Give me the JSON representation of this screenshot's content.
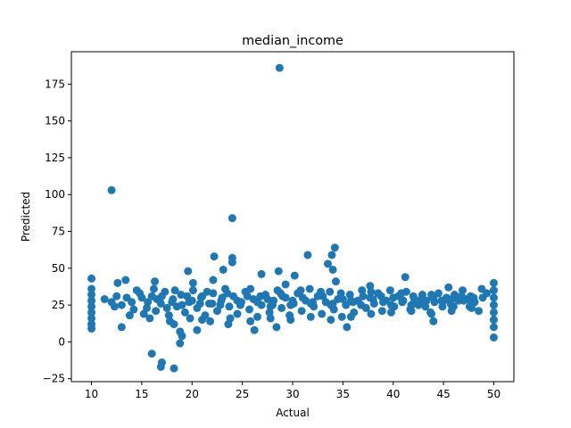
{
  "chart_data": {
    "type": "scatter",
    "title": "median_income",
    "xlabel": "Actual",
    "ylabel": "Predicted",
    "xlim": [
      8.0,
      52.0
    ],
    "ylim": [
      -27.0,
      197.0
    ],
    "xticks": [
      10,
      15,
      20,
      25,
      30,
      35,
      40,
      45,
      50
    ],
    "yticks": [
      -25,
      0,
      25,
      50,
      75,
      100,
      125,
      150,
      175
    ],
    "grid": false,
    "marker_color": "#1f77b4",
    "series": [
      {
        "points": [
          [
            28.7,
            186
          ],
          [
            12.0,
            103
          ],
          [
            24.0,
            84
          ],
          [
            34.2,
            64
          ],
          [
            22.2,
            58
          ],
          [
            24.0,
            57
          ],
          [
            31.5,
            59
          ],
          [
            33.9,
            59
          ],
          [
            24.0,
            54
          ],
          [
            33.5,
            53
          ],
          [
            34.0,
            49
          ],
          [
            23.1,
            49
          ],
          [
            19.6,
            48
          ],
          [
            28.6,
            48
          ],
          [
            26.9,
            46
          ],
          [
            30.2,
            45
          ],
          [
            41.2,
            44
          ],
          [
            10.0,
            43
          ],
          [
            13.4,
            42
          ],
          [
            22.1,
            42
          ],
          [
            16.3,
            41
          ],
          [
            34.3,
            41
          ],
          [
            50.0,
            40
          ],
          [
            12.6,
            40
          ],
          [
            20.1,
            40
          ],
          [
            37.7,
            38
          ],
          [
            29.3,
            39
          ],
          [
            45.5,
            37
          ],
          [
            16.0,
            -8
          ],
          [
            17.0,
            -14
          ],
          [
            16.9,
            -17
          ],
          [
            18.2,
            -18
          ],
          [
            18.8,
            7
          ],
          [
            19.0,
            4
          ],
          [
            18.8,
            -1
          ],
          [
            20.5,
            8
          ],
          [
            26.2,
            8
          ],
          [
            28.4,
            10
          ],
          [
            35.4,
            10
          ],
          [
            13.0,
            10
          ],
          [
            10.0,
            9
          ],
          [
            50.0,
            3
          ],
          [
            44.0,
            14
          ],
          [
            23.6,
            12
          ],
          [
            18.2,
            12
          ],
          [
            21.0,
            15
          ],
          [
            48.5,
            21
          ],
          [
            47.6,
            24
          ],
          [
            46.0,
            24
          ],
          [
            43.2,
            24
          ],
          [
            49.3,
            33
          ],
          [
            48.8,
            36
          ],
          [
            10.0,
            12
          ],
          [
            10.0,
            16
          ],
          [
            10.0,
            20
          ],
          [
            10.0,
            24
          ],
          [
            10.0,
            28
          ],
          [
            10.0,
            32
          ],
          [
            10.0,
            36
          ],
          [
            50.0,
            10
          ],
          [
            50.0,
            15
          ],
          [
            50.0,
            20
          ],
          [
            50.0,
            25
          ],
          [
            50.0,
            30
          ],
          [
            50.0,
            35
          ],
          [
            11.3,
            29
          ],
          [
            12.0,
            27
          ],
          [
            12.3,
            24
          ],
          [
            13.5,
            30
          ],
          [
            14.2,
            22
          ],
          [
            14.8,
            33
          ],
          [
            15.2,
            19
          ],
          [
            15.6,
            27
          ],
          [
            16.0,
            31
          ],
          [
            16.4,
            21
          ],
          [
            16.9,
            26
          ],
          [
            17.3,
            34
          ],
          [
            17.7,
            18
          ],
          [
            18.1,
            29
          ],
          [
            18.5,
            24
          ],
          [
            18.9,
            32
          ],
          [
            19.3,
            20
          ],
          [
            19.7,
            27
          ],
          [
            20.1,
            35
          ],
          [
            20.5,
            23
          ],
          [
            20.9,
            30
          ],
          [
            21.3,
            18
          ],
          [
            21.7,
            26
          ],
          [
            22.1,
            33
          ],
          [
            22.5,
            21
          ],
          [
            22.9,
            28
          ],
          [
            23.3,
            36
          ],
          [
            23.7,
            24
          ],
          [
            24.1,
            31
          ],
          [
            24.5,
            19
          ],
          [
            24.9,
            27
          ],
          [
            25.3,
            34
          ],
          [
            25.7,
            22
          ],
          [
            26.1,
            29
          ],
          [
            26.5,
            17
          ],
          [
            26.9,
            25
          ],
          [
            27.3,
            32
          ],
          [
            27.7,
            20
          ],
          [
            28.1,
            28
          ],
          [
            28.5,
            35
          ],
          [
            28.9,
            23
          ],
          [
            29.3,
            30
          ],
          [
            29.7,
            18
          ],
          [
            30.1,
            26
          ],
          [
            30.5,
            33
          ],
          [
            30.9,
            21
          ],
          [
            31.3,
            28
          ],
          [
            31.7,
            36
          ],
          [
            32.1,
            24
          ],
          [
            32.5,
            31
          ],
          [
            32.9,
            19
          ],
          [
            33.3,
            27
          ],
          [
            33.7,
            34
          ],
          [
            34.1,
            22
          ],
          [
            34.5,
            29
          ],
          [
            34.9,
            17
          ],
          [
            35.3,
            25
          ],
          [
            35.7,
            32
          ],
          [
            36.1,
            20
          ],
          [
            36.5,
            28
          ],
          [
            36.9,
            35
          ],
          [
            37.3,
            23
          ],
          [
            37.7,
            30
          ],
          [
            38.1,
            26
          ],
          [
            38.5,
            33
          ],
          [
            38.9,
            21
          ],
          [
            39.3,
            28
          ],
          [
            39.7,
            35
          ],
          [
            40.1,
            24
          ],
          [
            40.5,
            31
          ],
          [
            40.9,
            27
          ],
          [
            41.3,
            34
          ],
          [
            41.7,
            22
          ],
          [
            42.1,
            29
          ],
          [
            42.5,
            25
          ],
          [
            42.9,
            32
          ],
          [
            43.3,
            28
          ],
          [
            43.7,
            20
          ],
          [
            44.1,
            27
          ],
          [
            44.5,
            33
          ],
          [
            44.9,
            24
          ],
          [
            45.3,
            30
          ],
          [
            45.7,
            26
          ],
          [
            46.1,
            32
          ],
          [
            46.5,
            28
          ],
          [
            46.9,
            35
          ],
          [
            47.3,
            29
          ],
          [
            47.7,
            31
          ],
          [
            48.1,
            27
          ],
          [
            48.9,
            30
          ],
          [
            14.0,
            27
          ],
          [
            15.0,
            30
          ],
          [
            16.5,
            29
          ],
          [
            17.5,
            23
          ],
          [
            18.0,
            27
          ],
          [
            19.0,
            25
          ],
          [
            20.0,
            28
          ],
          [
            21.0,
            31
          ],
          [
            22.0,
            26
          ],
          [
            23.0,
            30
          ],
          [
            24.5,
            28
          ],
          [
            25.5,
            31
          ],
          [
            26.5,
            27
          ],
          [
            27.5,
            29
          ],
          [
            28.0,
            25
          ],
          [
            29.0,
            31
          ],
          [
            30.0,
            28
          ],
          [
            31.0,
            30
          ],
          [
            32.0,
            27
          ],
          [
            33.0,
            31
          ],
          [
            34.0,
            26
          ],
          [
            35.0,
            29
          ],
          [
            36.0,
            27
          ],
          [
            37.0,
            31
          ],
          [
            38.0,
            29
          ],
          [
            39.0,
            27
          ],
          [
            40.0,
            30
          ],
          [
            41.0,
            28
          ],
          [
            42.0,
            31
          ],
          [
            43.0,
            27
          ],
          [
            44.0,
            30
          ],
          [
            45.0,
            28
          ],
          [
            46.0,
            30
          ],
          [
            47.0,
            28
          ],
          [
            48.0,
            30
          ],
          [
            13.0,
            25
          ],
          [
            14.5,
            35
          ],
          [
            15.5,
            23
          ],
          [
            16.2,
            36
          ],
          [
            17.0,
            31
          ],
          [
            18.3,
            35
          ],
          [
            19.5,
            31
          ],
          [
            20.8,
            26
          ],
          [
            21.5,
            34
          ],
          [
            22.8,
            25
          ],
          [
            23.5,
            33
          ],
          [
            24.8,
            25
          ],
          [
            25.8,
            36
          ],
          [
            26.8,
            31
          ],
          [
            27.8,
            24
          ],
          [
            28.8,
            33
          ],
          [
            29.8,
            25
          ],
          [
            30.8,
            35
          ],
          [
            31.8,
            26
          ],
          [
            32.8,
            34
          ],
          [
            33.8,
            25
          ],
          [
            34.8,
            33
          ],
          [
            35.8,
            28
          ],
          [
            36.8,
            25
          ],
          [
            37.8,
            34
          ],
          [
            38.8,
            31
          ],
          [
            39.8,
            25
          ],
          [
            40.8,
            33
          ],
          [
            41.8,
            25
          ],
          [
            42.8,
            29
          ],
          [
            43.8,
            32
          ],
          [
            44.8,
            28
          ],
          [
            45.8,
            25
          ],
          [
            46.8,
            31
          ],
          [
            47.8,
            26
          ],
          [
            12.5,
            31
          ],
          [
            13.8,
            18
          ],
          [
            15.8,
            16
          ],
          [
            17.8,
            14
          ],
          [
            19.8,
            16
          ],
          [
            21.8,
            14
          ],
          [
            23.8,
            16
          ],
          [
            25.8,
            14
          ],
          [
            27.8,
            16
          ],
          [
            29.8,
            15
          ],
          [
            31.8,
            17
          ],
          [
            33.8,
            15
          ],
          [
            35.8,
            17
          ],
          [
            37.8,
            19
          ],
          [
            39.8,
            20
          ],
          [
            41.8,
            21
          ],
          [
            43.8,
            19
          ],
          [
            45.8,
            21
          ],
          [
            47.8,
            23
          ]
        ]
      }
    ]
  }
}
